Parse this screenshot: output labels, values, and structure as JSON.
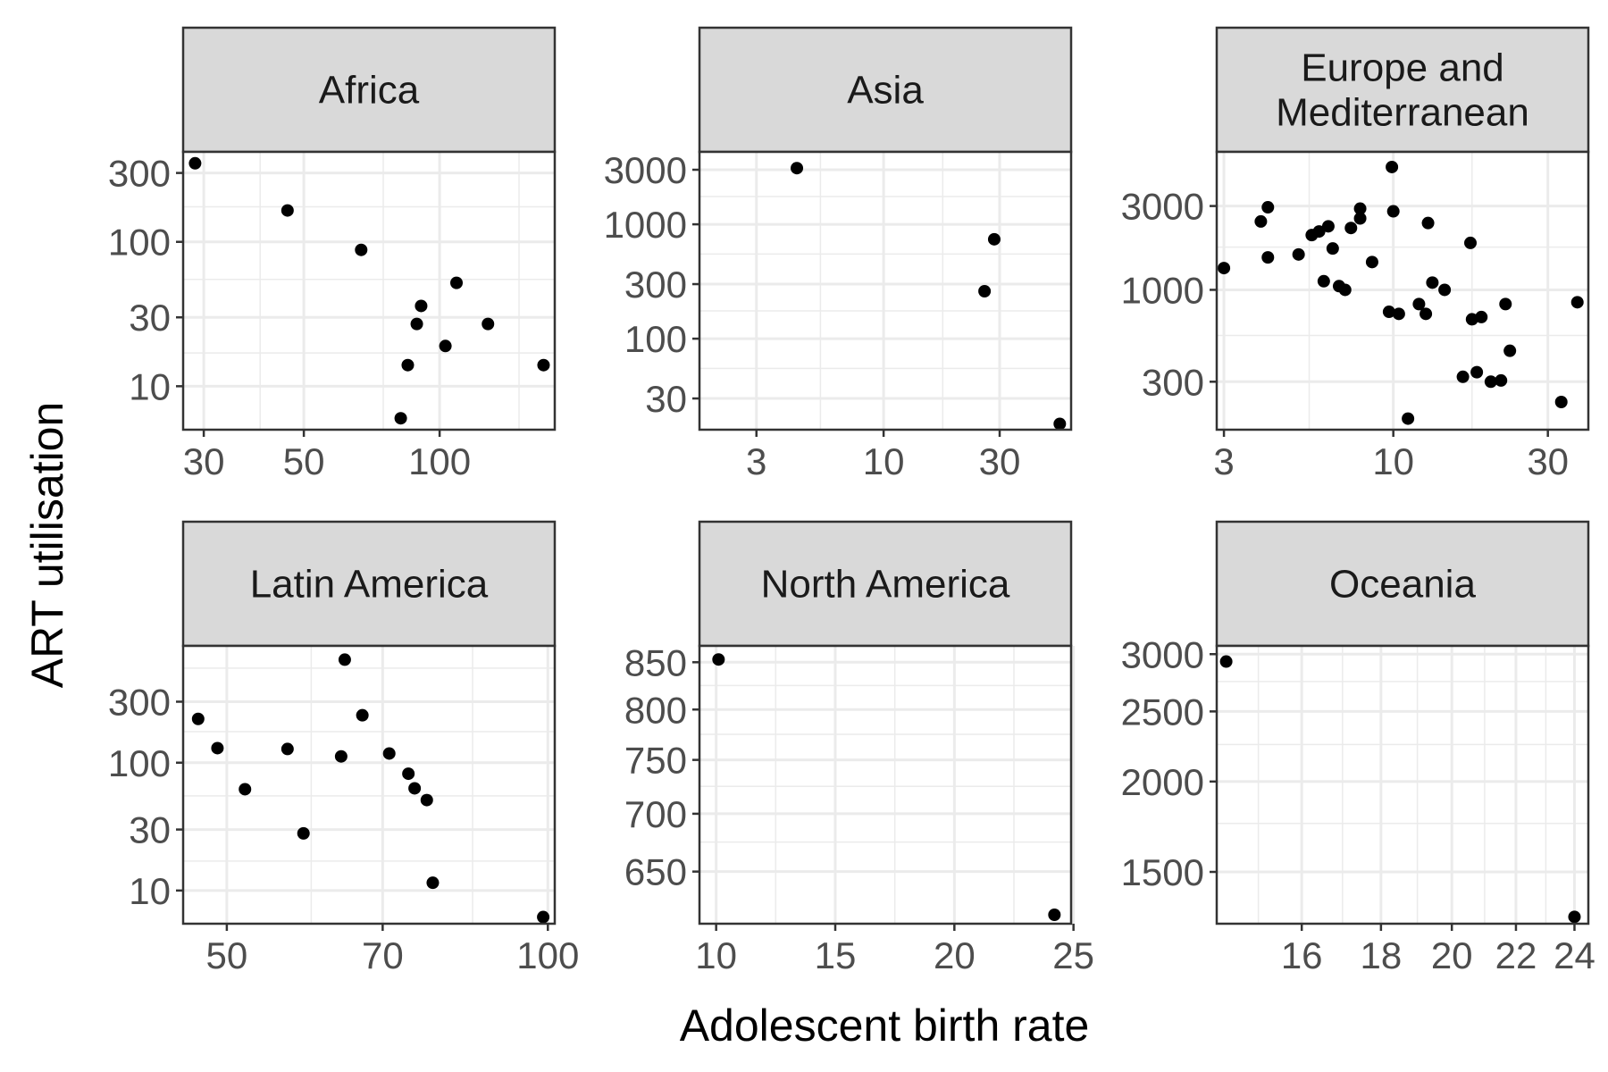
{
  "chart_data": {
    "type": "scatter",
    "xlabel": "Adolescent birth rate",
    "ylabel": "ART utilisation",
    "panels": [
      {
        "label": "Africa",
        "xscale": "log",
        "yscale": "log",
        "xlim": [
          27,
          180
        ],
        "ylim": [
          5,
          420
        ],
        "xticks": [
          30,
          50,
          100
        ],
        "xtick_labels": [
          "30",
          "50",
          "100"
        ],
        "xminor": [
          40,
          75,
          150
        ],
        "yticks": [
          10,
          30,
          100,
          300
        ],
        "ytick_labels": [
          "10",
          "30",
          "100",
          "300"
        ],
        "yminor": [
          17,
          55,
          175
        ],
        "points": [
          [
            28.7,
            350
          ],
          [
            46,
            165
          ],
          [
            67,
            88
          ],
          [
            82,
            6
          ],
          [
            85,
            14
          ],
          [
            89,
            27
          ],
          [
            91,
            36
          ],
          [
            103,
            19
          ],
          [
            109,
            52
          ],
          [
            128,
            27
          ],
          [
            170,
            14
          ]
        ]
      },
      {
        "label": "Asia",
        "xscale": "log",
        "yscale": "log",
        "xlim": [
          1.75,
          59
        ],
        "ylim": [
          16,
          4300
        ],
        "xticks": [
          3,
          10,
          30
        ],
        "xtick_labels": [
          "3",
          "10",
          "30"
        ],
        "xminor": [
          5.5,
          17.5
        ],
        "yticks": [
          30,
          100,
          300,
          1000,
          3000
        ],
        "ytick_labels": [
          "30",
          "100",
          "300",
          "1000",
          "3000"
        ],
        "yminor": [
          55,
          175,
          550,
          1750
        ],
        "points": [
          [
            4.4,
            3100
          ],
          [
            26,
            260
          ],
          [
            28.5,
            740
          ],
          [
            53,
            18
          ]
        ]
      },
      {
        "label": "Europe and Mediterranean",
        "xscale": "log",
        "yscale": "log",
        "xlim": [
          2.85,
          40
        ],
        "ylim": [
          160,
          6100
        ],
        "xticks": [
          3,
          10,
          30
        ],
        "xtick_labels": [
          "3",
          "10",
          "30"
        ],
        "xminor": [
          5.5,
          17.5
        ],
        "yticks": [
          300,
          1000,
          3000
        ],
        "ytick_labels": [
          "300",
          "1000",
          "3000"
        ],
        "yminor": [
          550,
          1750
        ],
        "points": [
          [
            3,
            1330
          ],
          [
            3.9,
            2450
          ],
          [
            4.1,
            1530
          ],
          [
            4.1,
            2950
          ],
          [
            5.1,
            1590
          ],
          [
            5.6,
            2050
          ],
          [
            5.9,
            2150
          ],
          [
            6.1,
            1120
          ],
          [
            6.3,
            2300
          ],
          [
            6.5,
            1720
          ],
          [
            6.8,
            1050
          ],
          [
            7.1,
            1000
          ],
          [
            7.4,
            2250
          ],
          [
            7.9,
            2550
          ],
          [
            7.9,
            2900
          ],
          [
            8.6,
            1440
          ],
          [
            9.7,
            750
          ],
          [
            9.9,
            5000
          ],
          [
            10,
            2800
          ],
          [
            10.4,
            730
          ],
          [
            11.1,
            185
          ],
          [
            12,
            830
          ],
          [
            12.6,
            730
          ],
          [
            12.8,
            2400
          ],
          [
            13.2,
            1100
          ],
          [
            14.4,
            1000
          ],
          [
            16.4,
            320
          ],
          [
            17.3,
            1850
          ],
          [
            17.5,
            680
          ],
          [
            18.1,
            340
          ],
          [
            18.7,
            700
          ],
          [
            20,
            300
          ],
          [
            21.5,
            305
          ],
          [
            22.2,
            830
          ],
          [
            22.9,
            450
          ],
          [
            33,
            230
          ],
          [
            37,
            850
          ]
        ]
      },
      {
        "label": "Latin America",
        "xscale": "log",
        "yscale": "log",
        "xlim": [
          45.5,
          101.5
        ],
        "ylim": [
          5.5,
          820
        ],
        "xticks": [
          50,
          70,
          100
        ],
        "xtick_labels": [
          "50",
          "70",
          "100"
        ],
        "xminor": [
          60,
          85
        ],
        "yticks": [
          10,
          30,
          100,
          300
        ],
        "ytick_labels": [
          "10",
          "30",
          "100",
          "300"
        ],
        "yminor": [
          17,
          55,
          175,
          550
        ],
        "points": [
          [
            47,
            220
          ],
          [
            49,
            130
          ],
          [
            52,
            62
          ],
          [
            57,
            128
          ],
          [
            59,
            28
          ],
          [
            64,
            112
          ],
          [
            64.5,
            640
          ],
          [
            67,
            235
          ],
          [
            71,
            118
          ],
          [
            74,
            82
          ],
          [
            75,
            63
          ],
          [
            77,
            51
          ],
          [
            78,
            11.5
          ],
          [
            99,
            6.2
          ]
        ]
      },
      {
        "label": "North America",
        "xscale": "linear",
        "yscale": "log",
        "xlim": [
          9.3,
          24.9
        ],
        "ylim": [
          608,
          868
        ],
        "xticks": [
          10,
          15,
          20,
          25
        ],
        "xtick_labels": [
          "10",
          "15",
          "20",
          "25"
        ],
        "xminor": [
          12.5,
          17.5,
          22.5
        ],
        "yticks": [
          650,
          700,
          750,
          800,
          850
        ],
        "ytick_labels": [
          "650",
          "700",
          "750",
          "800",
          "850"
        ],
        "yminor": [
          675,
          725,
          775,
          825
        ],
        "points": [
          [
            10.1,
            853
          ],
          [
            24.2,
            615
          ]
        ]
      },
      {
        "label": "Oceania",
        "xscale": "log",
        "yscale": "log",
        "xlim": [
          14.1,
          24.5
        ],
        "ylim": [
          1272,
          3080
        ],
        "xticks": [
          16,
          18,
          20,
          22,
          24
        ],
        "xtick_labels": [
          "16",
          "18",
          "20",
          "22",
          "24"
        ],
        "xminor": [
          15,
          17,
          19,
          21,
          23
        ],
        "yticks": [
          1500,
          2000,
          2500,
          3000
        ],
        "ytick_labels": [
          "1500",
          "2000",
          "2500",
          "3000"
        ],
        "yminor": [
          1750,
          2250,
          2750
        ],
        "points": [
          [
            14.3,
            2930
          ],
          [
            24,
            1300
          ]
        ]
      }
    ]
  }
}
